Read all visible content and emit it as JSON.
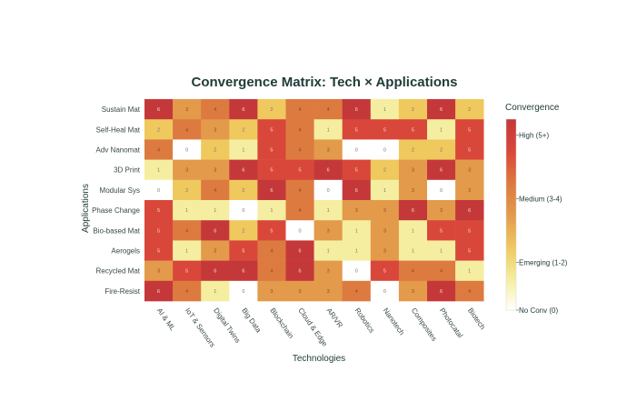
{
  "chart_data": {
    "type": "heatmap",
    "title": "Convergence Matrix: Tech × Applications",
    "xlabel": "Technologies",
    "ylabel": "Applications",
    "x_categories": [
      "AI & ML",
      "IoT & Sensors",
      "Digital Twins",
      "Big Data",
      "Blockchain",
      "Cloud & Edge",
      "AR/VR",
      "Robotics",
      "Nanotech",
      "Composites",
      "Photocatal",
      "Biotech"
    ],
    "y_categories": [
      "Sustain Mat",
      "Self-Heal Mat",
      "Adv Nanomat",
      "3D Print",
      "Modular Sys",
      "Phase Change",
      "Bio-based Mat",
      "Aerogels",
      "Recycled Mat",
      "Fire-Resist"
    ],
    "values": [
      [
        6,
        3,
        4,
        6,
        2,
        4,
        4,
        6,
        1,
        2,
        6,
        2
      ],
      [
        2,
        4,
        3,
        2,
        5,
        4,
        1,
        5,
        5,
        5,
        1,
        5
      ],
      [
        4,
        0,
        2,
        1,
        5,
        4,
        3,
        0,
        0,
        2,
        2,
        5
      ],
      [
        1,
        3,
        3,
        6,
        5,
        5,
        6,
        5,
        2,
        3,
        6,
        3
      ],
      [
        0,
        2,
        4,
        2,
        6,
        4,
        0,
        6,
        1,
        3,
        0,
        3
      ],
      [
        5,
        1,
        1,
        0,
        1,
        4,
        1,
        3,
        3,
        6,
        3,
        6
      ],
      [
        5,
        4,
        6,
        2,
        5,
        0,
        3,
        1,
        3,
        1,
        5,
        5
      ],
      [
        5,
        1,
        3,
        5,
        4,
        6,
        1,
        1,
        3,
        1,
        1,
        5
      ],
      [
        3,
        5,
        6,
        6,
        4,
        6,
        3,
        0,
        5,
        4,
        4,
        1
      ],
      [
        6,
        4,
        1,
        0,
        3,
        3,
        3,
        4,
        0,
        3,
        6,
        4
      ]
    ],
    "range": [
      0,
      6
    ],
    "colorbar": {
      "title": "Convergence",
      "ticks": [
        {
          "value": 5.5,
          "label": "High (5+)"
        },
        {
          "value": 3.5,
          "label": "Medium (3-4)"
        },
        {
          "value": 1.5,
          "label": "Emerging (1-2)"
        },
        {
          "value": 0,
          "label": "No Conv (0)"
        }
      ]
    },
    "colorscale": [
      "#ffffff",
      "#f5eea0",
      "#efc85e",
      "#e39a4b",
      "#dd7a40",
      "#d9473a",
      "#c5383a"
    ]
  }
}
